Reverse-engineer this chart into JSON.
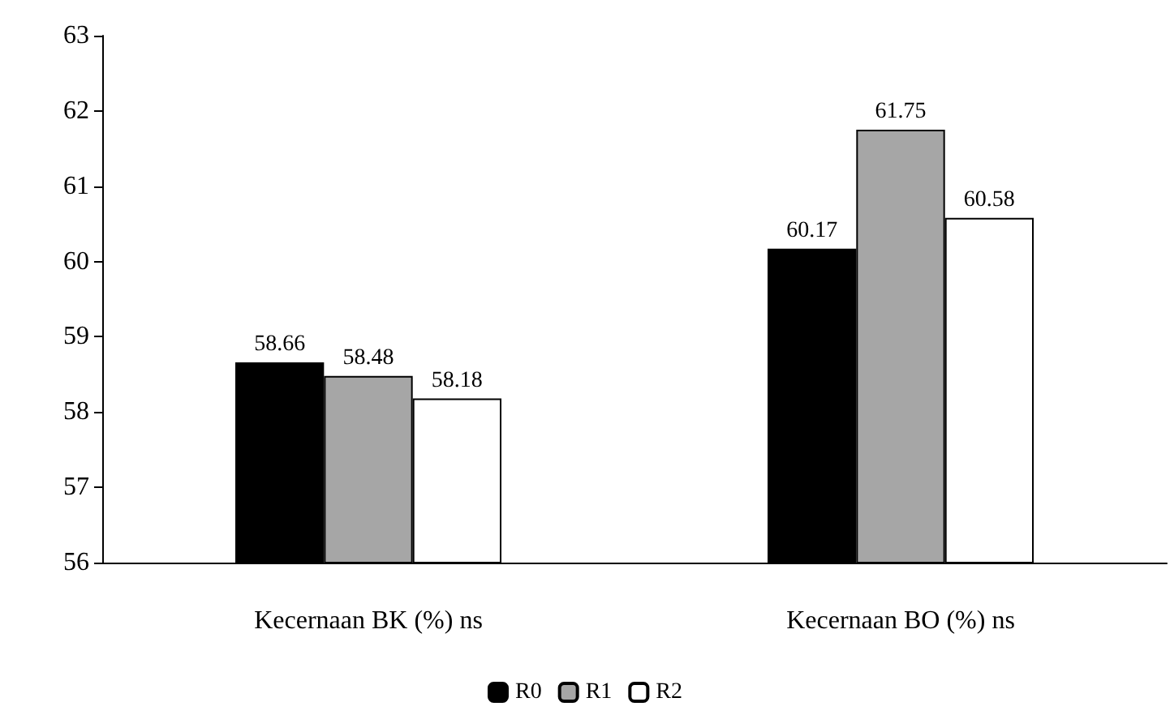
{
  "chart_data": {
    "type": "bar",
    "categories": [
      "Kecernaan BK (%) ns",
      "Kecernaan BO (%) ns"
    ],
    "series": [
      {
        "name": "R0",
        "color": "#000000",
        "values": [
          58.66,
          60.17
        ]
      },
      {
        "name": "R1",
        "color": "#a6a6a6",
        "values": [
          58.48,
          61.75
        ]
      },
      {
        "name": "R2",
        "color": "#ffffff",
        "values": [
          58.18,
          60.58
        ]
      }
    ],
    "ylim": [
      56,
      63
    ],
    "yticks": [
      56,
      57,
      58,
      59,
      60,
      61,
      62,
      63
    ],
    "grid": false,
    "legend": "bottom",
    "data_labels": true
  }
}
